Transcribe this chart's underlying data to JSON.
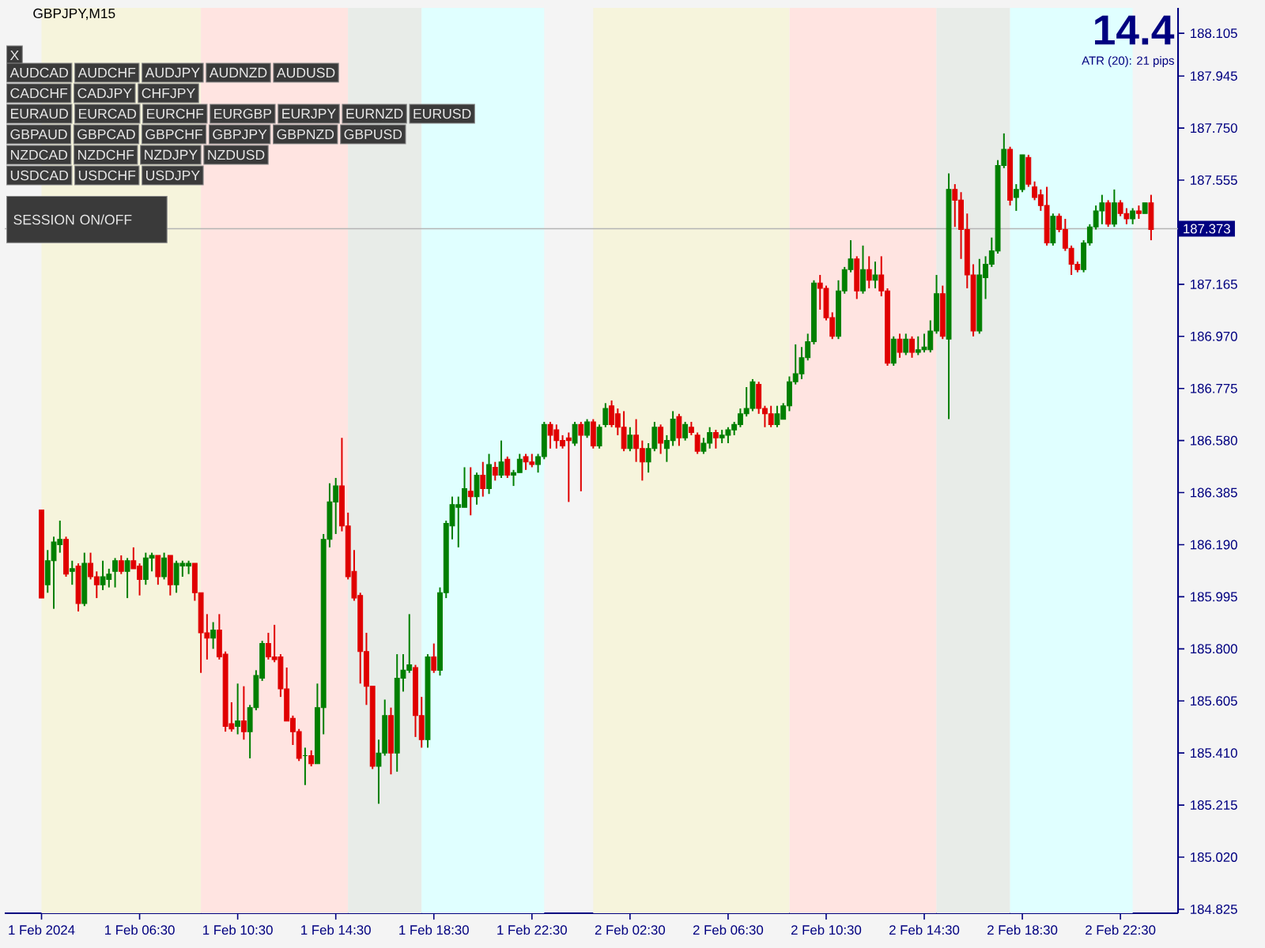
{
  "chart_data": {
    "type": "candlestick",
    "title": "GBPJPY,M15",
    "xlim": [
      "2024-02-01T01:00",
      "2024-02-03T00:51"
    ],
    "ylim": [
      184.81,
      188.2
    ],
    "xticks": [
      {
        "value": "2024-02-01T02:30",
        "label": "1 Feb 2024"
      },
      {
        "value": "2024-02-01T06:30",
        "label": "1 Feb 06:30"
      },
      {
        "value": "2024-02-01T10:30",
        "label": "1 Feb 10:30"
      },
      {
        "value": "2024-02-01T14:30",
        "label": "1 Feb 14:30"
      },
      {
        "value": "2024-02-01T18:30",
        "label": "1 Feb 18:30"
      },
      {
        "value": "2024-02-01T22:30",
        "label": "1 Feb 22:30"
      },
      {
        "value": "2024-02-02T02:30",
        "label": "2 Feb 02:30"
      },
      {
        "value": "2024-02-02T06:30",
        "label": "2 Feb 06:30"
      },
      {
        "value": "2024-02-02T10:30",
        "label": "2 Feb 10:30"
      },
      {
        "value": "2024-02-02T14:30",
        "label": "2 Feb 14:30"
      },
      {
        "value": "2024-02-02T18:30",
        "label": "2 Feb 18:30"
      },
      {
        "value": "2024-02-02T22:30",
        "label": "2 Feb 22:30"
      }
    ],
    "yticks": [
      188.105,
      187.945,
      {
        "value": 187.75,
        "label": "187.750"
      },
      187.555,
      187.165,
      {
        "value": 186.97,
        "label": "186.970"
      },
      186.775,
      {
        "value": 186.58,
        "label": "186.580"
      },
      186.385,
      {
        "value": 186.19,
        "label": "186.190"
      },
      185.995,
      {
        "value": 185.8,
        "label": "185.800"
      },
      185.605,
      {
        "value": 185.41,
        "label": "185.410"
      },
      185.215,
      {
        "value": 185.02,
        "label": "185.020"
      },
      184.825
    ],
    "x": [
      "2024-02-01T02:30",
      "2024-02-01T02:45",
      "2024-02-01T03:00",
      "2024-02-01T03:15",
      "2024-02-01T03:30",
      "2024-02-01T03:45",
      "2024-02-01T04:00",
      "2024-02-01T04:15",
      "2024-02-01T04:30",
      "2024-02-01T04:45",
      "2024-02-01T05:00",
      "2024-02-01T05:15",
      "2024-02-01T05:30",
      "2024-02-01T05:45",
      "2024-02-01T06:00",
      "2024-02-01T06:15",
      "2024-02-01T06:30",
      "2024-02-01T06:45",
      "2024-02-01T07:00",
      "2024-02-01T07:15",
      "2024-02-01T07:30",
      "2024-02-01T07:45",
      "2024-02-01T08:00",
      "2024-02-01T08:15",
      "2024-02-01T08:30",
      "2024-02-01T08:45",
      "2024-02-01T09:00",
      "2024-02-01T09:15",
      "2024-02-01T09:30",
      "2024-02-01T09:45",
      "2024-02-01T10:00",
      "2024-02-01T10:15",
      "2024-02-01T10:30",
      "2024-02-01T10:45",
      "2024-02-01T11:00",
      "2024-02-01T11:15",
      "2024-02-01T11:30",
      "2024-02-01T11:45",
      "2024-02-01T12:00",
      "2024-02-01T12:15",
      "2024-02-01T12:30",
      "2024-02-01T12:45",
      "2024-02-01T13:00",
      "2024-02-01T13:15",
      "2024-02-01T13:30",
      "2024-02-01T13:45",
      "2024-02-01T14:00",
      "2024-02-01T14:15",
      "2024-02-01T14:30",
      "2024-02-01T14:45",
      "2024-02-01T15:00",
      "2024-02-01T15:15",
      "2024-02-01T15:30",
      "2024-02-01T15:45",
      "2024-02-01T16:00",
      "2024-02-01T16:15",
      "2024-02-01T16:30",
      "2024-02-01T16:45",
      "2024-02-01T17:00",
      "2024-02-01T17:15",
      "2024-02-01T17:30",
      "2024-02-01T17:45",
      "2024-02-01T18:00",
      "2024-02-01T18:15",
      "2024-02-01T18:30",
      "2024-02-01T18:45",
      "2024-02-01T19:00",
      "2024-02-01T19:15",
      "2024-02-01T19:30",
      "2024-02-01T19:45",
      "2024-02-01T20:00",
      "2024-02-01T20:15",
      "2024-02-01T20:30",
      "2024-02-01T20:45",
      "2024-02-01T21:00",
      "2024-02-01T21:15",
      "2024-02-01T21:30",
      "2024-02-01T21:45",
      "2024-02-01T22:00",
      "2024-02-01T22:15",
      "2024-02-01T22:30",
      "2024-02-01T22:45",
      "2024-02-01T23:00",
      "2024-02-01T23:15",
      "2024-02-01T23:30",
      "2024-02-01T23:45",
      "2024-02-02T00:00",
      "2024-02-02T00:15",
      "2024-02-02T00:30",
      "2024-02-02T00:45",
      "2024-02-02T01:00",
      "2024-02-02T01:15",
      "2024-02-02T01:30",
      "2024-02-02T01:45",
      "2024-02-02T02:00",
      "2024-02-02T02:15",
      "2024-02-02T02:30",
      "2024-02-02T02:45",
      "2024-02-02T03:00",
      "2024-02-02T03:15",
      "2024-02-02T03:30",
      "2024-02-02T03:45",
      "2024-02-02T04:00",
      "2024-02-02T04:15",
      "2024-02-02T04:30",
      "2024-02-02T04:45",
      "2024-02-02T05:00",
      "2024-02-02T05:15",
      "2024-02-02T05:30",
      "2024-02-02T05:45",
      "2024-02-02T06:00",
      "2024-02-02T06:15",
      "2024-02-02T06:30",
      "2024-02-02T06:45",
      "2024-02-02T07:00",
      "2024-02-02T07:15",
      "2024-02-02T07:30",
      "2024-02-02T07:45",
      "2024-02-02T08:00",
      "2024-02-02T08:15",
      "2024-02-02T08:30",
      "2024-02-02T08:45",
      "2024-02-02T09:00",
      "2024-02-02T09:15",
      "2024-02-02T09:30",
      "2024-02-02T09:45",
      "2024-02-02T10:00",
      "2024-02-02T10:15",
      "2024-02-02T10:30",
      "2024-02-02T10:45",
      "2024-02-02T11:00",
      "2024-02-02T11:15",
      "2024-02-02T11:30",
      "2024-02-02T11:45",
      "2024-02-02T12:00",
      "2024-02-02T12:15",
      "2024-02-02T12:30",
      "2024-02-02T12:45",
      "2024-02-02T13:00",
      "2024-02-02T13:15",
      "2024-02-02T13:30",
      "2024-02-02T13:45",
      "2024-02-02T14:00",
      "2024-02-02T14:15",
      "2024-02-02T14:30",
      "2024-02-02T14:45",
      "2024-02-02T15:00",
      "2024-02-02T15:15",
      "2024-02-02T15:30",
      "2024-02-02T15:45",
      "2024-02-02T16:00",
      "2024-02-02T16:15",
      "2024-02-02T16:30",
      "2024-02-02T16:45",
      "2024-02-02T17:00",
      "2024-02-02T17:15",
      "2024-02-02T17:30",
      "2024-02-02T17:45",
      "2024-02-02T18:00",
      "2024-02-02T18:15",
      "2024-02-02T18:30",
      "2024-02-02T18:45",
      "2024-02-02T19:00",
      "2024-02-02T19:15",
      "2024-02-02T19:30",
      "2024-02-02T19:45",
      "2024-02-02T20:00",
      "2024-02-02T20:15",
      "2024-02-02T20:30",
      "2024-02-02T20:45",
      "2024-02-02T21:00",
      "2024-02-02T21:15",
      "2024-02-02T21:30",
      "2024-02-02T21:45",
      "2024-02-02T22:00",
      "2024-02-02T22:15",
      "2024-02-02T22:30",
      "2024-02-02T22:45",
      "2024-02-02T23:00",
      "2024-02-02T23:15",
      "2024-02-02T23:30",
      "2024-02-02T23:45"
    ],
    "ohlc": [
      [
        186.32,
        186.32,
        185.99,
        185.99
      ],
      [
        186.04,
        186.17,
        186.01,
        186.13
      ],
      [
        186.13,
        186.22,
        185.95,
        186.2
      ],
      [
        186.19,
        186.28,
        186.16,
        186.21
      ],
      [
        186.21,
        186.22,
        186.07,
        186.08
      ],
      [
        186.09,
        186.13,
        186.04,
        186.1
      ],
      [
        186.11,
        186.12,
        185.94,
        185.97
      ],
      [
        185.97,
        186.16,
        185.96,
        186.12
      ],
      [
        186.12,
        186.16,
        186.06,
        186.07
      ],
      [
        186.07,
        186.09,
        185.99,
        186.04
      ],
      [
        186.04,
        186.13,
        186.02,
        186.07
      ],
      [
        186.06,
        186.1,
        186.03,
        186.08
      ],
      [
        186.09,
        186.14,
        186.03,
        186.13
      ],
      [
        186.13,
        186.15,
        186.08,
        186.09
      ],
      [
        186.09,
        186.14,
        185.99,
        186.13
      ],
      [
        186.13,
        186.18,
        186.1,
        186.1
      ],
      [
        186.11,
        186.12,
        186.0,
        186.06
      ],
      [
        186.06,
        186.16,
        186.04,
        186.14
      ],
      [
        186.14,
        186.16,
        186.09,
        186.15
      ],
      [
        186.15,
        186.15,
        186.04,
        186.07
      ],
      [
        186.07,
        186.16,
        186.06,
        186.14
      ],
      [
        186.15,
        186.15,
        186.0,
        186.04
      ],
      [
        186.04,
        186.13,
        186.01,
        186.12
      ],
      [
        186.11,
        186.13,
        186.07,
        186.12
      ],
      [
        186.11,
        186.13,
        186.08,
        186.12
      ],
      [
        186.12,
        186.12,
        185.98,
        186.01
      ],
      [
        186.01,
        186.01,
        185.71,
        185.86
      ],
      [
        185.86,
        185.93,
        185.76,
        185.84
      ],
      [
        185.84,
        185.9,
        185.8,
        185.87
      ],
      [
        185.87,
        185.93,
        185.76,
        185.77
      ],
      [
        185.78,
        185.79,
        185.49,
        185.51
      ],
      [
        185.52,
        185.6,
        185.49,
        185.5
      ],
      [
        185.51,
        185.67,
        185.48,
        185.53
      ],
      [
        185.53,
        185.66,
        185.46,
        185.49
      ],
      [
        185.49,
        185.59,
        185.39,
        185.58
      ],
      [
        185.58,
        185.72,
        185.57,
        185.7
      ],
      [
        185.69,
        185.83,
        185.68,
        185.82
      ],
      [
        185.82,
        185.86,
        185.76,
        185.77
      ],
      [
        185.77,
        185.89,
        185.75,
        185.76
      ],
      [
        185.77,
        185.78,
        185.62,
        185.65
      ],
      [
        185.65,
        185.73,
        185.53,
        185.53
      ],
      [
        185.54,
        185.55,
        185.44,
        185.49
      ],
      [
        185.49,
        185.5,
        185.38,
        185.39
      ],
      [
        185.4,
        185.43,
        185.29,
        185.4
      ],
      [
        185.4,
        185.42,
        185.36,
        185.37
      ],
      [
        185.37,
        185.67,
        185.37,
        185.58
      ],
      [
        185.58,
        186.23,
        185.48,
        186.21
      ],
      [
        186.21,
        186.42,
        186.18,
        186.35
      ],
      [
        186.35,
        186.44,
        186.23,
        186.41
      ],
      [
        186.41,
        186.59,
        186.24,
        186.26
      ],
      [
        186.26,
        186.31,
        186.06,
        186.07
      ],
      [
        186.09,
        186.17,
        185.98,
        185.99
      ],
      [
        186.0,
        186.01,
        185.67,
        185.79
      ],
      [
        185.79,
        185.86,
        185.59,
        185.66
      ],
      [
        185.66,
        185.66,
        185.35,
        185.36
      ],
      [
        185.36,
        185.46,
        185.22,
        185.41
      ],
      [
        185.41,
        185.61,
        185.4,
        185.55
      ],
      [
        185.55,
        185.58,
        185.33,
        185.41
      ],
      [
        185.41,
        185.78,
        185.34,
        185.69
      ],
      [
        185.69,
        185.78,
        185.64,
        185.72
      ],
      [
        185.72,
        185.93,
        185.71,
        185.74
      ],
      [
        185.73,
        185.74,
        185.47,
        185.55
      ],
      [
        185.55,
        185.62,
        185.43,
        185.46
      ],
      [
        185.46,
        185.78,
        185.43,
        185.77
      ],
      [
        185.77,
        185.82,
        185.71,
        185.72
      ],
      [
        185.72,
        186.03,
        185.7,
        186.01
      ],
      [
        186.01,
        186.28,
        185.99,
        186.27
      ],
      [
        186.26,
        186.37,
        186.21,
        186.34
      ],
      [
        186.33,
        186.37,
        186.18,
        186.34
      ],
      [
        186.33,
        186.48,
        186.33,
        186.4
      ],
      [
        186.39,
        186.48,
        186.3,
        186.37
      ],
      [
        186.37,
        186.46,
        186.34,
        186.45
      ],
      [
        186.45,
        186.5,
        186.37,
        186.4
      ],
      [
        186.4,
        186.53,
        186.38,
        186.49
      ],
      [
        186.48,
        186.5,
        186.43,
        186.45
      ],
      [
        186.45,
        186.58,
        186.44,
        186.5
      ],
      [
        186.51,
        186.52,
        186.44,
        186.45
      ],
      [
        186.45,
        186.47,
        186.41,
        186.46
      ],
      [
        186.46,
        186.53,
        186.46,
        186.51
      ],
      [
        186.52,
        186.53,
        186.47,
        186.5
      ],
      [
        186.5,
        186.53,
        186.48,
        186.49
      ],
      [
        186.49,
        186.53,
        186.46,
        186.52
      ],
      [
        186.52,
        186.65,
        186.51,
        186.64
      ],
      [
        186.64,
        186.65,
        186.55,
        186.6
      ],
      [
        186.62,
        186.64,
        186.55,
        186.58
      ],
      [
        186.58,
        186.6,
        186.55,
        186.56
      ],
      [
        186.59,
        186.61,
        186.35,
        186.58
      ],
      [
        186.57,
        186.65,
        186.56,
        186.64
      ],
      [
        186.64,
        186.65,
        186.39,
        186.6
      ],
      [
        186.6,
        186.66,
        186.59,
        186.65
      ],
      [
        186.65,
        186.66,
        186.55,
        186.56
      ],
      [
        186.56,
        186.64,
        186.55,
        186.63
      ],
      [
        186.64,
        186.72,
        186.63,
        186.7
      ],
      [
        186.71,
        186.73,
        186.63,
        186.64
      ],
      [
        186.68,
        186.7,
        186.6,
        186.63
      ],
      [
        186.63,
        186.69,
        186.54,
        186.55
      ],
      [
        186.55,
        186.63,
        186.54,
        186.6
      ],
      [
        186.6,
        186.66,
        186.5,
        186.55
      ],
      [
        186.55,
        186.58,
        186.43,
        186.5
      ],
      [
        186.5,
        186.57,
        186.46,
        186.55
      ],
      [
        186.55,
        186.65,
        186.54,
        186.63
      ],
      [
        186.63,
        186.64,
        186.53,
        186.57
      ],
      [
        186.55,
        186.6,
        186.5,
        186.58
      ],
      [
        186.58,
        186.69,
        186.56,
        186.66
      ],
      [
        186.67,
        186.68,
        186.56,
        186.59
      ],
      [
        186.59,
        186.65,
        186.58,
        186.64
      ],
      [
        186.63,
        186.65,
        186.6,
        186.61
      ],
      [
        186.6,
        186.61,
        186.53,
        186.54
      ],
      [
        186.54,
        186.59,
        186.53,
        186.57
      ],
      [
        186.57,
        186.63,
        186.55,
        186.61
      ],
      [
        186.61,
        186.62,
        186.55,
        186.59
      ],
      [
        186.59,
        186.62,
        186.57,
        186.6
      ],
      [
        186.6,
        186.63,
        186.57,
        186.62
      ],
      [
        186.62,
        186.65,
        186.6,
        186.64
      ],
      [
        186.64,
        186.7,
        186.63,
        186.68
      ],
      [
        186.68,
        186.78,
        186.67,
        186.7
      ],
      [
        186.7,
        186.81,
        186.69,
        186.8
      ],
      [
        186.79,
        186.8,
        186.68,
        186.7
      ],
      [
        186.7,
        186.71,
        186.63,
        186.68
      ],
      [
        186.68,
        186.71,
        186.63,
        186.64
      ],
      [
        186.64,
        186.71,
        186.63,
        186.68
      ],
      [
        186.66,
        186.72,
        186.66,
        186.71
      ],
      [
        186.71,
        186.82,
        186.69,
        186.8
      ],
      [
        186.8,
        186.94,
        186.79,
        186.83
      ],
      [
        186.83,
        186.93,
        186.81,
        186.89
      ],
      [
        186.89,
        186.98,
        186.88,
        186.95
      ],
      [
        186.95,
        187.18,
        186.94,
        187.17
      ],
      [
        187.17,
        187.2,
        187.07,
        187.15
      ],
      [
        187.15,
        187.16,
        187.03,
        187.04
      ],
      [
        187.04,
        187.06,
        186.96,
        186.97
      ],
      [
        186.97,
        187.18,
        186.96,
        187.14
      ],
      [
        187.14,
        187.23,
        187.13,
        187.22
      ],
      [
        187.22,
        187.33,
        187.21,
        187.26
      ],
      [
        187.26,
        187.27,
        187.11,
        187.14
      ],
      [
        187.14,
        187.31,
        187.13,
        187.22
      ],
      [
        187.22,
        187.27,
        187.15,
        187.18
      ],
      [
        187.18,
        187.25,
        187.15,
        187.2
      ],
      [
        187.2,
        187.27,
        187.12,
        187.14
      ],
      [
        187.14,
        187.15,
        186.86,
        186.87
      ],
      [
        186.87,
        186.97,
        186.86,
        186.96
      ],
      [
        186.96,
        186.98,
        186.89,
        186.91
      ],
      [
        186.91,
        186.98,
        186.9,
        186.96
      ],
      [
        186.96,
        186.97,
        186.89,
        186.91
      ],
      [
        186.91,
        186.97,
        186.9,
        186.92
      ],
      [
        186.92,
        186.98,
        186.91,
        186.93
      ],
      [
        186.92,
        187.03,
        186.91,
        186.99
      ],
      [
        186.99,
        187.2,
        186.98,
        187.13
      ],
      [
        187.13,
        187.16,
        186.96,
        186.97
      ],
      [
        186.96,
        187.58,
        186.66,
        187.52
      ],
      [
        187.52,
        187.54,
        187.38,
        187.48
      ],
      [
        187.48,
        187.51,
        187.26,
        187.37
      ],
      [
        187.37,
        187.43,
        187.15,
        187.2
      ],
      [
        187.2,
        187.24,
        186.97,
        186.99
      ],
      [
        186.99,
        187.26,
        186.98,
        187.2
      ],
      [
        187.19,
        187.27,
        187.11,
        187.24
      ],
      [
        187.24,
        187.34,
        187.23,
        187.29
      ],
      [
        187.29,
        187.63,
        187.28,
        187.61
      ],
      [
        187.61,
        187.73,
        187.6,
        187.67
      ],
      [
        187.67,
        187.68,
        187.46,
        187.48
      ],
      [
        187.49,
        187.54,
        187.44,
        187.52
      ],
      [
        187.52,
        187.65,
        187.51,
        187.65
      ],
      [
        187.64,
        187.65,
        187.53,
        187.54
      ],
      [
        187.53,
        187.55,
        187.48,
        187.49
      ],
      [
        187.5,
        187.52,
        187.44,
        187.46
      ],
      [
        187.46,
        187.53,
        187.31,
        187.32
      ],
      [
        187.32,
        187.43,
        187.31,
        187.42
      ],
      [
        187.42,
        187.43,
        187.36,
        187.37
      ],
      [
        187.37,
        187.41,
        187.29,
        187.3
      ],
      [
        187.3,
        187.31,
        187.2,
        187.24
      ],
      [
        187.24,
        187.25,
        187.21,
        187.22
      ],
      [
        187.22,
        187.33,
        187.21,
        187.32
      ],
      [
        187.32,
        187.39,
        187.31,
        187.38
      ],
      [
        187.38,
        187.46,
        187.37,
        187.44
      ],
      [
        187.44,
        187.5,
        187.39,
        187.47
      ],
      [
        187.47,
        187.48,
        187.38,
        187.39
      ],
      [
        187.39,
        187.52,
        187.38,
        187.47
      ],
      [
        187.47,
        187.48,
        187.42,
        187.43
      ],
      [
        187.43,
        187.45,
        187.39,
        187.41
      ],
      [
        187.41,
        187.45,
        187.39,
        187.44
      ],
      [
        187.44,
        187.46,
        187.41,
        187.43
      ],
      [
        187.43,
        187.47,
        187.43,
        187.47
      ],
      [
        187.47,
        187.5,
        187.33,
        187.37
      ]
    ],
    "colors": [
      "#e00000",
      "#007f00",
      "#007f00",
      "#007f00",
      "#e00000",
      "#007f00",
      "#e00000",
      "#007f00",
      "#e00000",
      "#e00000",
      "#007f00",
      "#007f00",
      "#007f00",
      "#e00000",
      "#007f00",
      "#e00000",
      "#e00000",
      "#007f00",
      "#007f00",
      "#e00000",
      "#007f00",
      "#e00000",
      "#007f00",
      "#007f00",
      "#007f00",
      "#e00000",
      "#e00000",
      "#e00000",
      "#007f00",
      "#e00000",
      "#e00000",
      "#e00000",
      "#007f00",
      "#e00000",
      "#007f00",
      "#007f00",
      "#007f00",
      "#e00000",
      "#e00000",
      "#e00000",
      "#e00000",
      "#e00000",
      "#e00000",
      "#007f00",
      "#e00000",
      "#007f00",
      "#007f00",
      "#007f00",
      "#007f00",
      "#e00000",
      "#e00000",
      "#e00000",
      "#e00000",
      "#e00000",
      "#e00000",
      "#007f00",
      "#007f00",
      "#e00000",
      "#007f00",
      "#007f00",
      "#007f00",
      "#e00000",
      "#e00000",
      "#007f00",
      "#e00000",
      "#007f00",
      "#007f00",
      "#007f00",
      "#007f00",
      "#007f00",
      "#e00000",
      "#007f00",
      "#e00000",
      "#007f00",
      "#e00000",
      "#007f00",
      "#e00000",
      "#007f00",
      "#007f00",
      "#e00000",
      "#e00000",
      "#007f00",
      "#007f00",
      "#e00000",
      "#e00000",
      "#e00000",
      "#e00000",
      "#007f00",
      "#e00000",
      "#007f00",
      "#e00000",
      "#007f00",
      "#007f00",
      "#e00000",
      "#e00000",
      "#e00000",
      "#007f00",
      "#e00000",
      "#e00000",
      "#007f00",
      "#007f00",
      "#e00000",
      "#007f00",
      "#007f00",
      "#e00000",
      "#007f00",
      "#e00000",
      "#e00000",
      "#007f00",
      "#007f00",
      "#e00000",
      "#007f00",
      "#007f00",
      "#007f00",
      "#007f00",
      "#007f00",
      "#007f00",
      "#e00000",
      "#e00000",
      "#e00000",
      "#007f00",
      "#007f00",
      "#007f00",
      "#007f00",
      "#007f00",
      "#007f00",
      "#007f00",
      "#e00000",
      "#e00000",
      "#e00000",
      "#007f00",
      "#007f00",
      "#007f00",
      "#e00000",
      "#007f00",
      "#e00000",
      "#007f00",
      "#e00000",
      "#e00000",
      "#007f00",
      "#e00000",
      "#007f00",
      "#e00000",
      "#007f00",
      "#007f00",
      "#007f00",
      "#007f00",
      "#e00000",
      "#007f00",
      "#e00000",
      "#e00000",
      "#e00000",
      "#e00000",
      "#007f00",
      "#007f00",
      "#007f00",
      "#007f00",
      "#007f00",
      "#e00000",
      "#007f00",
      "#007f00",
      "#e00000",
      "#e00000",
      "#e00000",
      "#e00000",
      "#007f00",
      "#e00000",
      "#e00000",
      "#e00000",
      "#e00000",
      "#007f00",
      "#007f00",
      "#007f00",
      "#007f00",
      "#e00000",
      "#007f00",
      "#e00000",
      "#e00000",
      "#007f00",
      "#e00000",
      "#007f00",
      "#e00000"
    ],
    "bands": [
      {
        "axis": "x",
        "from": "2024-02-01T02:30",
        "to": "2024-02-01T09:00",
        "color": "#f6f4dc"
      },
      {
        "axis": "x",
        "from": "2024-02-01T09:00",
        "to": "2024-02-01T15:00",
        "color": "#ffe4e1"
      },
      {
        "axis": "x",
        "from": "2024-02-01T15:00",
        "to": "2024-02-01T18:00",
        "color": "#e8ece8"
      },
      {
        "axis": "x",
        "from": "2024-02-01T18:00",
        "to": "2024-02-01T23:00",
        "color": "#e0ffff"
      },
      {
        "axis": "x",
        "from": "2024-02-02T01:00",
        "to": "2024-02-02T09:00",
        "color": "#f6f4dc"
      },
      {
        "axis": "x",
        "from": "2024-02-02T09:00",
        "to": "2024-02-02T15:00",
        "color": "#ffe4e1"
      },
      {
        "axis": "x",
        "from": "2024-02-02T15:00",
        "to": "2024-02-02T18:00",
        "color": "#e8ece8"
      },
      {
        "axis": "x",
        "from": "2024-02-02T18:00",
        "to": "2024-02-02T23:00",
        "color": "#e0ffff"
      }
    ],
    "ref_lines": [
      {
        "axis": "y",
        "value": 187.373,
        "label": "187.373",
        "color": "#b4b4b4"
      }
    ],
    "annotations": [
      "14.4",
      "ATR (20): 21 pips",
      "X",
      "AUDCAD",
      "AUDCHF",
      "AUDJPY",
      "AUDNZD",
      "AUDUSD",
      "CADCHF",
      "CADJPY",
      "CHFJPY",
      "EURAUD",
      "EURCAD",
      "EURCHF",
      "EURGBP",
      "EURJPY",
      "EURNZD",
      "EURUSD",
      "GBPAUD",
      "GBPCAD",
      "GBPCHF",
      "GBPJPY",
      "GBPNZD",
      "GBPUSD",
      "NZDCAD",
      "NZDCHF",
      "NZDJPY",
      "NZDUSD",
      "USDCAD",
      "USDCHF",
      "USDJPY",
      "SESSION ON/OFF"
    ]
  }
}
